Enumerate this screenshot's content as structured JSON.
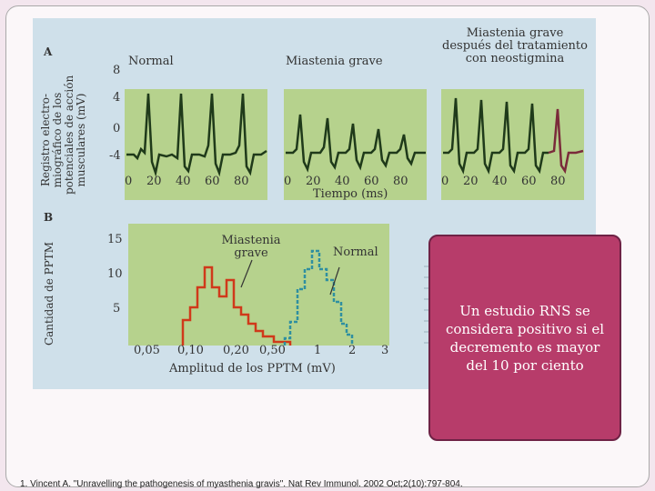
{
  "figure": {
    "panel_a": {
      "letter": "A",
      "ytitle": [
        "Registro electro-",
        "miográfico de los",
        "potenciales de acción",
        "musculares (mV)"
      ],
      "yticks": [
        "8",
        "4",
        "0",
        "-4"
      ],
      "traces": [
        {
          "title": "Normal"
        },
        {
          "title": "Miastenia grave"
        },
        {
          "title": "Miastenia grave\ndespués del tratamiento\ncon neostigmina"
        }
      ],
      "xticks": [
        "0",
        "20",
        "40",
        "60",
        "80"
      ],
      "xlabel": "Tiempo (ms)"
    },
    "panel_b": {
      "letter": "B",
      "ytitle": "Cantidad de PPTM",
      "yticks": [
        "15",
        "10",
        "5"
      ],
      "xticks": [
        "0,05",
        "0,10",
        "0,20",
        "0,50",
        "1",
        "2",
        "3"
      ],
      "xlabel": "Amplitud de los PPTM (mV)",
      "label_mg": "Miastenia\ngrave",
      "label_normal": "Normal"
    }
  },
  "callout": {
    "text": "Un estudio RNS se considera positivo si el decremento es mayor del 10 por ciento"
  },
  "reference": "1. Vincent A. \"Unravelling the pathogenesis of myasthenia gravis\". Nat Rev Immunol. 2002 Oct;2(10):797-804.",
  "colors": {
    "background": "#f3e6ee",
    "figure_bg": "#cfe0ea",
    "plot_bg": "#b6d28d",
    "trace": "#1f3a1a",
    "mg_hist": "#d0391a",
    "normal_hist": "#2f8fa0",
    "callout_bg": "#b73c6a",
    "callout_border": "#6e2245"
  }
}
